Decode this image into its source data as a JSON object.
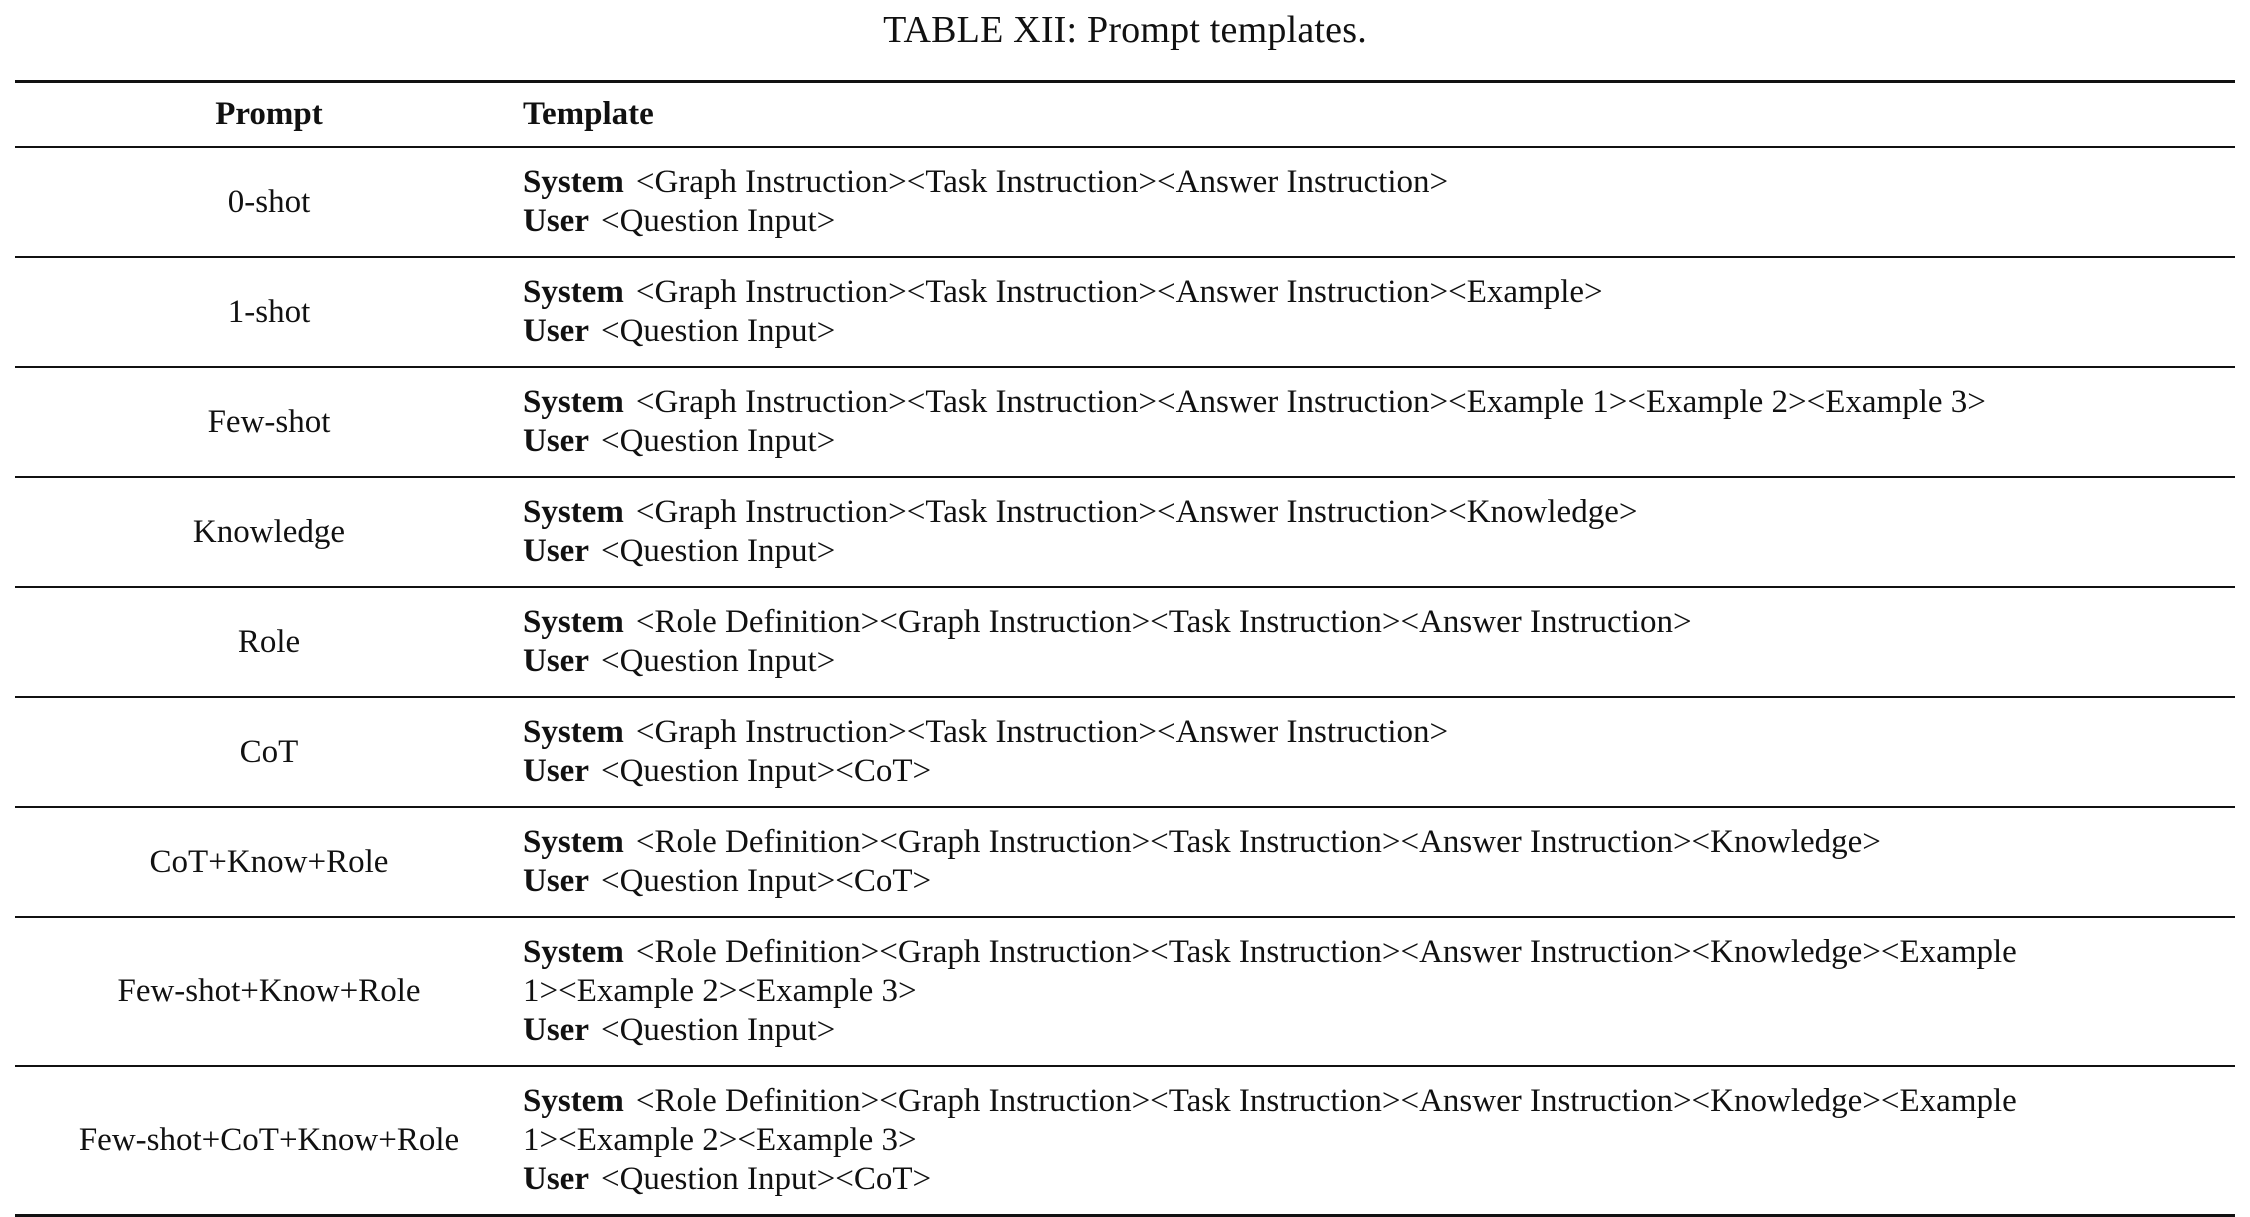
{
  "caption": "TABLE XII: Prompt templates.",
  "headers": {
    "prompt": "Prompt",
    "template": "Template"
  },
  "rows": [
    {
      "prompt": "0-shot",
      "system_label": "System",
      "system": "<Graph Instruction><Task Instruction><Answer Instruction>",
      "user_label": "User",
      "user": "<Question Input>"
    },
    {
      "prompt": "1-shot",
      "system_label": "System",
      "system": "<Graph Instruction><Task Instruction><Answer Instruction><Example>",
      "user_label": "User",
      "user": "<Question Input>"
    },
    {
      "prompt": "Few-shot",
      "system_label": "System",
      "system": "<Graph Instruction><Task Instruction><Answer Instruction><Example 1><Example 2><Example 3>",
      "user_label": "User",
      "user": "<Question Input>"
    },
    {
      "prompt": "Knowledge",
      "system_label": "System",
      "system": "<Graph Instruction><Task Instruction><Answer Instruction><Knowledge>",
      "user_label": "User",
      "user": "<Question Input>"
    },
    {
      "prompt": "Role",
      "system_label": "System",
      "system": "<Role Definition><Graph Instruction><Task Instruction><Answer Instruction>",
      "user_label": "User",
      "user": "<Question Input>"
    },
    {
      "prompt": "CoT",
      "system_label": "System",
      "system": "<Graph Instruction><Task Instruction><Answer Instruction>",
      "user_label": "User",
      "user": "<Question Input><CoT>"
    },
    {
      "prompt": "CoT+Know+Role",
      "system_label": "System",
      "system": "<Role Definition><Graph Instruction><Task Instruction><Answer Instruction><Knowledge>",
      "user_label": "User",
      "user": "<Question Input><CoT>"
    },
    {
      "prompt": "Few-shot+Know+Role",
      "system_label": "System",
      "system": "<Role Definition><Graph Instruction><Task Instruction><Answer Instruction><Knowledge><Example",
      "system_cont": "1><Example 2><Example 3>",
      "user_label": "User",
      "user": "<Question Input>"
    },
    {
      "prompt": "Few-shot+CoT+Know+Role",
      "system_label": "System",
      "system": "<Role Definition><Graph Instruction><Task Instruction><Answer Instruction><Knowledge><Example",
      "system_cont": "1><Example 2><Example 3>",
      "user_label": "User",
      "user": "<Question Input><CoT>"
    }
  ]
}
